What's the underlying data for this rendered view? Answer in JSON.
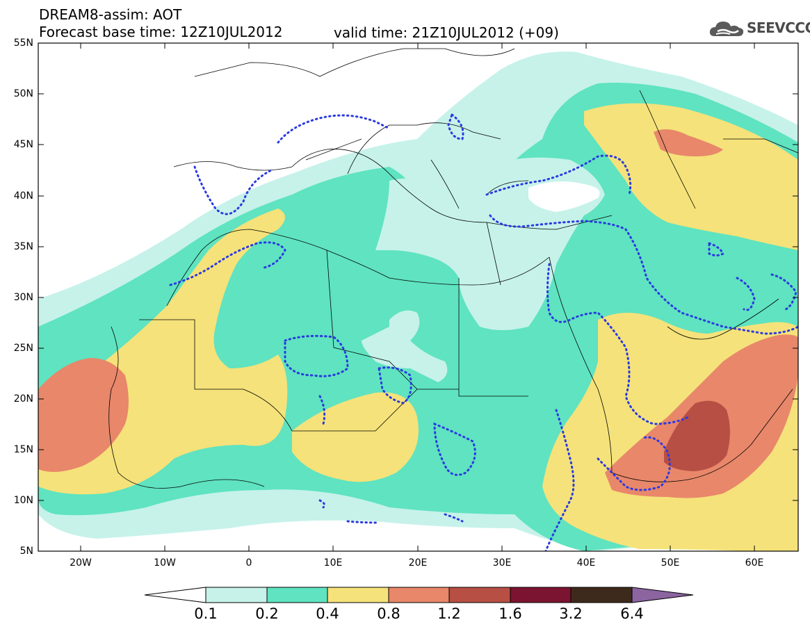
{
  "header": {
    "title": "DREAM8-assim: AOT",
    "base_time": "Forecast base time: 12Z10JUL2012",
    "valid_time": "valid time: 21Z10JUL2012 (+09)"
  },
  "logo": {
    "text": "SEEVCCC",
    "icon": "cloud-icon"
  },
  "map": {
    "variable": "AOT",
    "lat_labels": [
      "55N",
      "50N",
      "45N",
      "40N",
      "35N",
      "30N",
      "25N",
      "20N",
      "15N",
      "10N",
      "5N"
    ],
    "lon_labels": [
      "20W",
      "10W",
      "0",
      "10E",
      "20E",
      "30E",
      "40E",
      "50E",
      "60E"
    ],
    "extent": {
      "lon": [
        -25,
        65
      ],
      "lat": [
        5,
        55
      ]
    }
  },
  "colorbar": {
    "labels": [
      "0.1",
      "0.2",
      "0.4",
      "0.8",
      "1.2",
      "1.6",
      "3.2",
      "6.4"
    ],
    "colors": [
      "#ffffff",
      "#c6f2ea",
      "#5fe3c0",
      "#f5e27a",
      "#e8876a",
      "#b74f44",
      "#7b1430",
      "#3e2a1c",
      "#8b64a0"
    ]
  }
}
